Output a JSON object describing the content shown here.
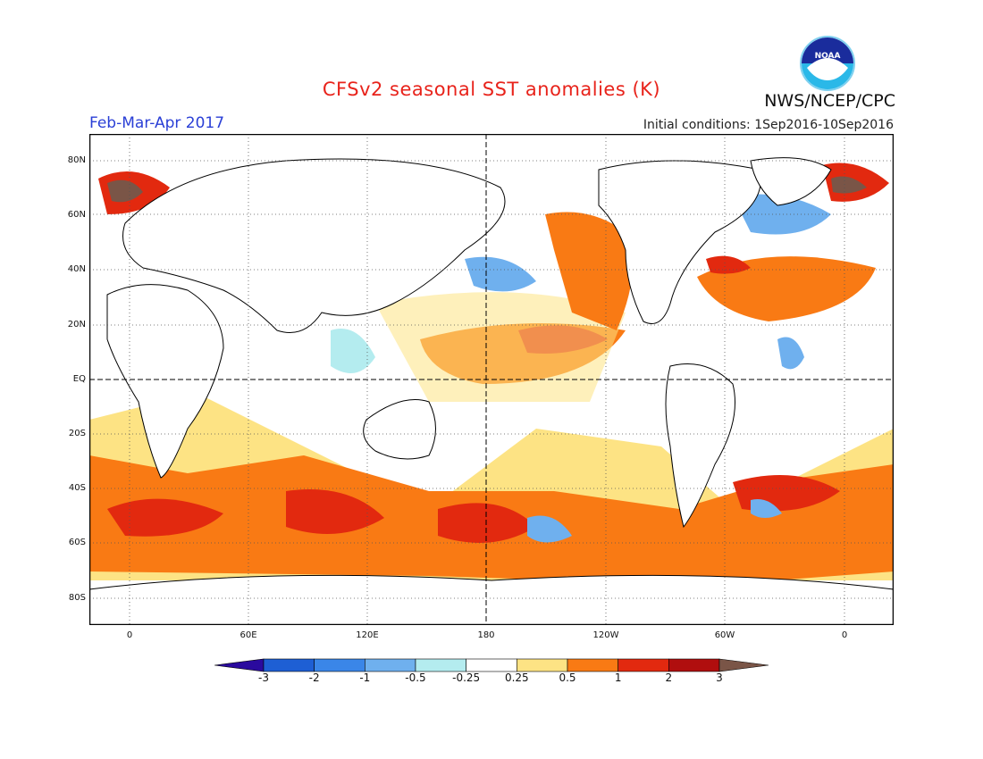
{
  "header": {
    "title": "CFSv2 seasonal SST anomalies (K)",
    "season": "Feb-Mar-Apr 2017",
    "initial_conditions": "Initial conditions: 1Sep2016-10Sep2016",
    "agency": "NWS/NCEP/CPC",
    "logo_text": "NOAA"
  },
  "map": {
    "lat_labels": [
      "80N",
      "60N",
      "40N",
      "20N",
      "EQ",
      "20S",
      "40S",
      "60S",
      "80S"
    ],
    "lon_labels": [
      "0",
      "60E",
      "120E",
      "180",
      "120W",
      "60W",
      "0"
    ]
  },
  "colorbar": {
    "labels": [
      "-3",
      "-2",
      "-1",
      "-0.5",
      "-0.25",
      "0.25",
      "0.5",
      "1",
      "2",
      "3"
    ],
    "colors": [
      "#2a0a9e",
      "#1e5fd4",
      "#3a86e8",
      "#6fb0ee",
      "#b4ecef",
      "#ffffff",
      "#fde384",
      "#f97a14",
      "#e2290f",
      "#b00e0e",
      "#7a5547"
    ]
  }
}
